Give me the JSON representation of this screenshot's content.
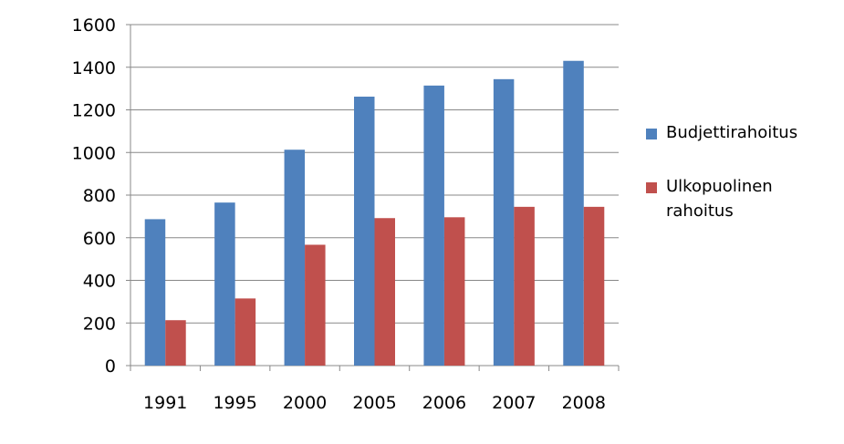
{
  "chart_data": {
    "type": "bar",
    "categories": [
      "1991",
      "1995",
      "2000",
      "2005",
      "2006",
      "2007",
      "2008"
    ],
    "series": [
      {
        "name": "Budjettirahoitus",
        "color": "#4F81BD",
        "values": [
          687,
          765,
          1013,
          1262,
          1314,
          1344,
          1430
        ]
      },
      {
        "name": "Ulkopuolinen rahoitus",
        "color": "#C0504D",
        "values": [
          213,
          315,
          567,
          692,
          696,
          745,
          745
        ]
      }
    ],
    "yticks": [
      "0",
      "200",
      "400",
      "600",
      "800",
      "1000",
      "1200",
      "1400",
      "1600"
    ],
    "ylim": [
      0,
      1600
    ],
    "grid": true,
    "legend_position": "right"
  },
  "legend": {
    "items": [
      {
        "label": "Budjettirahoitus",
        "color": "#4F81BD"
      },
      {
        "label": "Ulkopuolinen rahoitus",
        "color": "#C0504D"
      }
    ]
  }
}
